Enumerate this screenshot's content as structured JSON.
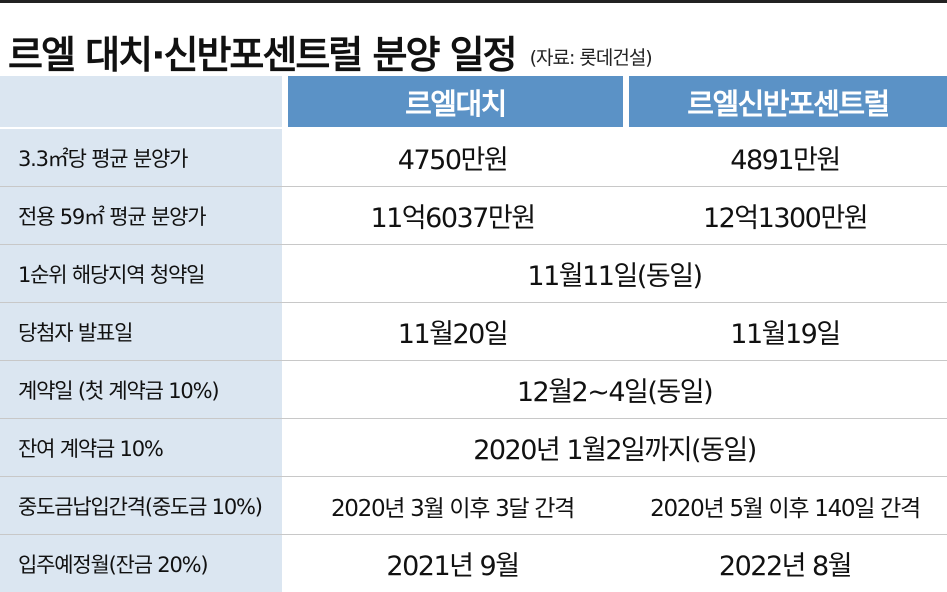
{
  "title": "르엘 대치·신반포센트럴 분양 일정",
  "source": "(자료: 롯데건설)",
  "columns": [
    "르엘대치",
    "르엘신반포센트럴"
  ],
  "rows": [
    {
      "label": "3.3㎡당 평균 분양가",
      "values": [
        "4750만원",
        "4891만원"
      ]
    },
    {
      "label": "전용 59㎡ 평균 분양가",
      "values": [
        "11억6037만원",
        "12억1300만원"
      ]
    },
    {
      "label": "1순위 해당지역 청약일",
      "merged": "11월11일(동일)"
    },
    {
      "label": "당첨자 발표일",
      "values": [
        "11월20일",
        "11월19일"
      ]
    },
    {
      "label": "계약일 (첫 계약금 10%)",
      "merged": "12월2~4일(동일)"
    },
    {
      "label": "잔여 계약금 10%",
      "merged": "2020년 1월2일까지(동일)"
    },
    {
      "label": "중도금납입간격(중도금 10%)",
      "values": [
        "2020년 3월 이후 3달 간격",
        "2020년 5월 이후 140일 간격"
      ]
    },
    {
      "label": "입주예정월(잔금 20%)",
      "values": [
        "2021년 9월",
        "2022년 8월"
      ]
    }
  ],
  "colors": {
    "header_fill": "#5b92c6",
    "label_fill": "#dbe6f1",
    "header_text": "#ffffff"
  }
}
